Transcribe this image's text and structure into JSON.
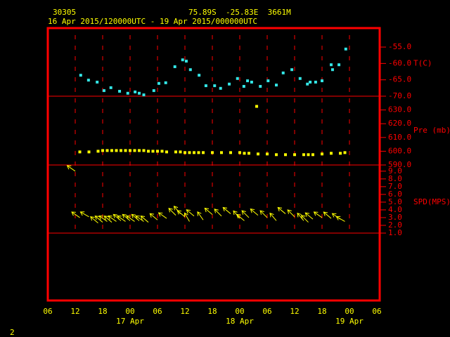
{
  "header": {
    "station": "30305",
    "location": "75.89S  -25.83E  3661M",
    "period": "16 Apr 2015/120000UTC - 19 Apr 2015/000000UTC"
  },
  "footer": "2",
  "time_axis": {
    "xlim": [
      6,
      78
    ],
    "xticks": [
      {
        "value": 6,
        "label": "06"
      },
      12,
      18,
      {
        "value": 24,
        "label": "00"
      },
      {
        "value": 30,
        "label": "06"
      },
      {
        "value": 36,
        "label": "12"
      },
      {
        "value": 42,
        "label": "18"
      },
      {
        "value": 48,
        "label": "00"
      },
      {
        "value": 54,
        "label": "06"
      },
      {
        "value": 60,
        "label": "12"
      },
      {
        "value": 66,
        "label": "18"
      },
      {
        "value": 72,
        "label": "00"
      },
      {
        "value": 78,
        "label": "06"
      }
    ],
    "date_labels": [
      {
        "value": 24,
        "label": "17 Apr"
      },
      {
        "value": 48,
        "label": "18 Apr"
      },
      {
        "value": 72,
        "label": "19 Apr"
      }
    ]
  },
  "chart_data": [
    {
      "type": "scatter",
      "y_label": "T(C)",
      "color": "#33e6e6",
      "x": [
        13.2,
        14.9,
        16.8,
        18.3,
        19.8,
        21.7,
        23.5,
        25.1,
        26.0,
        27.0,
        29.2,
        30.3,
        31.8,
        33.8,
        35.5,
        36.3,
        37.2,
        39.1,
        40.6,
        42.5,
        43.8,
        45.7,
        47.5,
        48.9,
        49.7,
        50.6,
        52.5,
        54.2,
        56.0,
        57.5,
        59.4,
        61.2,
        62.8,
        63.4,
        64.6,
        66.0,
        68.0,
        68.3,
        69.7,
        71.2
      ],
      "values": [
        -63.6,
        -65.1,
        -65.7,
        -68.3,
        -67.4,
        -68.5,
        -69.1,
        -68.7,
        -69.1,
        -69.6,
        -68.3,
        -66.1,
        -65.9,
        -61.0,
        -58.9,
        -59.3,
        -61.9,
        -63.6,
        -66.8,
        -66.8,
        -67.6,
        -66.3,
        -64.6,
        -67.0,
        -65.3,
        -65.7,
        -67.0,
        -65.3,
        -66.6,
        -62.9,
        -61.9,
        -64.6,
        -66.3,
        -65.7,
        -65.7,
        -65.3,
        -60.4,
        -61.9,
        -60.4,
        -55.6
      ],
      "ylim": [
        -70,
        -49.2
      ],
      "yticks": [
        {
          "value": -55,
          "label": "-55.0"
        },
        {
          "value": -60,
          "label": "-60.0"
        },
        {
          "value": -65,
          "label": "-65.0"
        },
        {
          "value": -70,
          "label": "-70.0"
        }
      ]
    },
    {
      "type": "scatter",
      "y_label": "Pre (mb)",
      "color": "#ffff00",
      "x": [
        13,
        15,
        17,
        18,
        19,
        20,
        21,
        22,
        23,
        24,
        25,
        26,
        27,
        28,
        29,
        30,
        31,
        32,
        34,
        35,
        36,
        37,
        38,
        39,
        40,
        42,
        44,
        46,
        48,
        49,
        50,
        51.7,
        52,
        54,
        56,
        58,
        60,
        62,
        63,
        64,
        66,
        68,
        70,
        71
      ],
      "values": [
        599.5,
        599.5,
        600,
        600.5,
        600.5,
        600.5,
        600.5,
        600.5,
        600.5,
        600.5,
        600.5,
        600.5,
        600.5,
        600,
        600,
        600,
        600,
        599.5,
        599.5,
        599.5,
        599,
        599,
        599,
        599,
        599,
        599,
        599,
        599,
        599,
        598.5,
        598.5,
        632.6,
        598,
        598,
        597.5,
        597.5,
        597.5,
        597.5,
        597.5,
        597.5,
        598,
        598.5,
        598.5,
        599
      ],
      "ylim": [
        590,
        640
      ],
      "yticks": [
        {
          "value": 630,
          "label": "630.0"
        },
        {
          "value": 620,
          "label": "620.0"
        },
        {
          "value": 610,
          "label": "610.0"
        },
        {
          "value": 600,
          "label": "600.0"
        },
        {
          "value": 590,
          "label": "590.0"
        }
      ]
    },
    {
      "type": "wind",
      "y_label": "SPD(MPS)",
      "color": "#ffff00",
      "x": [
        12,
        13,
        15,
        17,
        18,
        19,
        20,
        21,
        22,
        23,
        24,
        25,
        26,
        27,
        28,
        30,
        32,
        34,
        35,
        36,
        37,
        38,
        40,
        42,
        44,
        46,
        48,
        49,
        50,
        52,
        54,
        56,
        58,
        60,
        62,
        63,
        64,
        66,
        68,
        70,
        71
      ],
      "speeds": [
        9.0,
        3.0,
        3.1,
        2.3,
        2.4,
        2.5,
        2.4,
        2.5,
        2.6,
        2.5,
        2.6,
        2.5,
        2.6,
        2.5,
        2.4,
        2.7,
        2.9,
        3.3,
        3.5,
        3.1,
        2.5,
        3.2,
        2.7,
        3.4,
        3.2,
        3.5,
        2.9,
        2.6,
        3.0,
        3.3,
        3.0,
        2.6,
        3.5,
        3.1,
        2.6,
        2.4,
        2.8,
        3.0,
        2.9,
        2.8,
        2.5
      ],
      "directions": [
        125,
        125,
        120,
        130,
        130,
        125,
        130,
        125,
        130,
        125,
        130,
        125,
        130,
        125,
        130,
        130,
        125,
        135,
        140,
        130,
        150,
        130,
        145,
        130,
        135,
        130,
        140,
        130,
        135,
        130,
        135,
        140,
        130,
        135,
        140,
        135,
        130,
        125,
        130,
        125,
        120
      ],
      "ylim": [
        1,
        9.8
      ],
      "yticks": [
        {
          "value": 9,
          "label": "9.0"
        },
        {
          "value": 8,
          "label": "8.0"
        },
        {
          "value": 7,
          "label": "7.0"
        },
        {
          "value": 6,
          "label": "6.0"
        },
        {
          "value": 5,
          "label": "5.0"
        },
        {
          "value": 4,
          "label": "4.0"
        },
        {
          "value": 3,
          "label": "3.0"
        },
        {
          "value": 2,
          "label": "2.0"
        },
        {
          "value": 1,
          "label": "1.0"
        }
      ]
    }
  ]
}
